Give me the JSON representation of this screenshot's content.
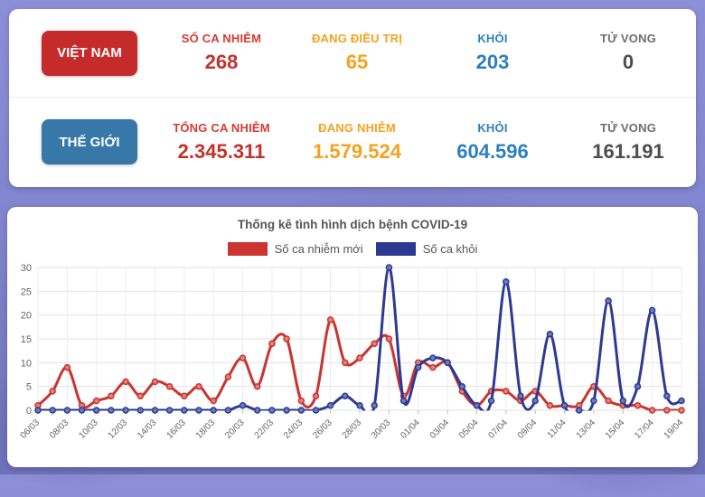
{
  "stats_panel": {
    "rows": [
      {
        "id": "vietnam",
        "button_label": "VIỆT NAM",
        "button_color": "#c62b2b",
        "stats": [
          {
            "label": "SỐ CA NHIỄM",
            "value": "268",
            "color": "#d93a32",
            "value_color": "#c4312d"
          },
          {
            "label": "ĐANG ĐIỀU TRỊ",
            "value": "65",
            "color": "#f5a21d",
            "value_color": "#f5a21d"
          },
          {
            "label": "KHỎI",
            "value": "203",
            "color": "#2e7fc1",
            "value_color": "#2e7fc1"
          },
          {
            "label": "TỬ VONG",
            "value": "0",
            "color": "#6e6e6e",
            "value_color": "#4d4d4d"
          }
        ]
      },
      {
        "id": "the-gioi",
        "button_label": "THẾ GIỚI",
        "button_color": "#3778a9",
        "stats": [
          {
            "label": "TỔNG CA NHIỄM",
            "value": "2.345.311",
            "color": "#d93a32",
            "value_color": "#c4312d"
          },
          {
            "label": "ĐANG NHIỄM",
            "value": "1.579.524",
            "color": "#f5a21d",
            "value_color": "#f5a21d"
          },
          {
            "label": "KHỎI",
            "value": "604.596",
            "color": "#2e7fc1",
            "value_color": "#2e7fc1"
          },
          {
            "label": "TỬ VONG",
            "value": "161.191",
            "color": "#6e6e6e",
            "value_color": "#4d4d4d"
          }
        ]
      }
    ]
  },
  "chart_data": {
    "type": "line",
    "title": "Thống kê tình hình dịch bệnh COVID-19",
    "x_tick_labels": [
      "06/03",
      "08/03",
      "10/03",
      "12/03",
      "14/03",
      "16/03",
      "18/03",
      "20/03",
      "22/03",
      "24/03",
      "26/03",
      "28/03",
      "30/03",
      "01/04",
      "03/04",
      "05/04",
      "07/04",
      "09/04",
      "11/04",
      "13/04",
      "15/04",
      "17/04",
      "19/04"
    ],
    "points_per_tick": 2,
    "x_points": 45,
    "series": [
      {
        "name": "Số ca nhiễm mới",
        "color": "#cb3430",
        "marker_fill": "#e0837a",
        "values": [
          1,
          4,
          9,
          1,
          2,
          3,
          6,
          3,
          6,
          5,
          3,
          5,
          2,
          7,
          11,
          5,
          14,
          15,
          2,
          3,
          19,
          10,
          11,
          14,
          15,
          3,
          10,
          9,
          10,
          4,
          1,
          4,
          4,
          2,
          4,
          1,
          1,
          1,
          5,
          2,
          1,
          1,
          0,
          0,
          0
        ]
      },
      {
        "name": "Số ca khỏi",
        "color": "#2c3a92",
        "marker_fill": "#7079bc",
        "values": [
          0,
          0,
          0,
          0,
          0,
          0,
          0,
          0,
          0,
          0,
          0,
          0,
          0,
          0,
          1,
          0,
          0,
          0,
          0,
          0,
          1,
          3,
          1,
          1,
          30,
          2,
          9,
          11,
          10,
          5,
          1,
          2,
          27,
          3,
          2,
          16,
          1,
          0,
          2,
          23,
          2,
          5,
          21,
          3,
          2
        ]
      }
    ],
    "ylim": [
      0,
      30
    ],
    "yticks": [
      0,
      5,
      10,
      15,
      20,
      25,
      30
    ],
    "grid": true,
    "legend_position": "top"
  }
}
